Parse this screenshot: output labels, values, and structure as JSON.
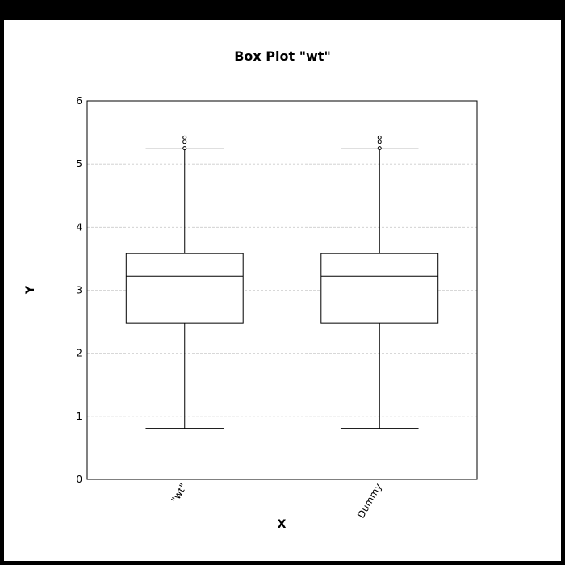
{
  "chart_data": {
    "type": "box",
    "title": "Box Plot \"wt\"",
    "xlabel": "X",
    "ylabel": "Y",
    "ylim": [
      0,
      6
    ],
    "yticks": [
      "0",
      "1",
      "2",
      "3",
      "4",
      "5",
      "6"
    ],
    "grid": true,
    "categories": [
      "\"wt\"",
      "Dummy"
    ],
    "boxes": [
      {
        "category": "\"wt\"",
        "whisker_low": 0.81,
        "q1": 2.48,
        "median": 3.22,
        "q3": 3.58,
        "whisker_high": 5.24,
        "outliers": [
          5.25,
          5.35,
          5.42
        ]
      },
      {
        "category": "Dummy",
        "whisker_low": 0.81,
        "q1": 2.48,
        "median": 3.22,
        "q3": 3.58,
        "whisker_high": 5.24,
        "outliers": [
          5.25,
          5.35,
          5.42
        ]
      }
    ],
    "colors": {
      "background": "#ffffff",
      "stroke": "#000000",
      "grid": "#cccccc"
    }
  }
}
